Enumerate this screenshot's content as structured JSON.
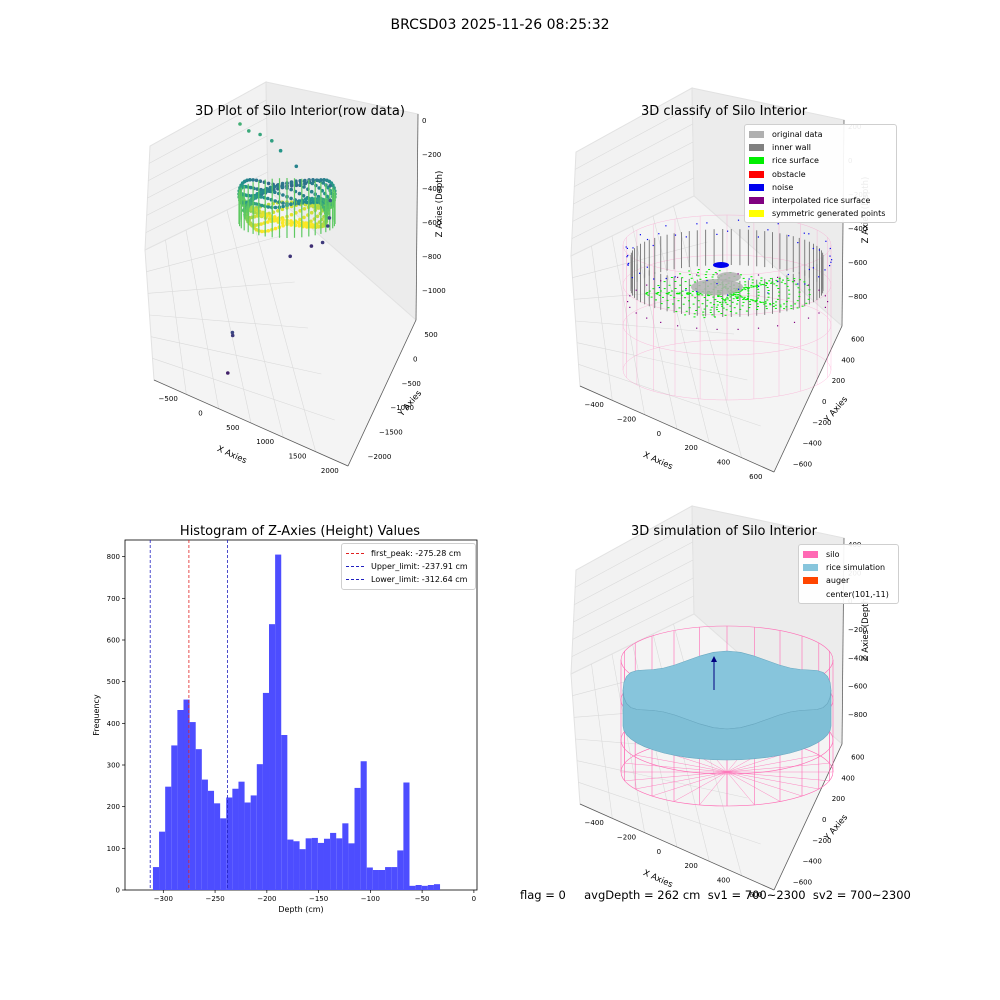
{
  "figure_title": "BRCSD03 2025-11-26 08:25:32",
  "status_line": "flag = 0     avgDepth = 262 cm  sv1 = 700~2300  sv2 = 700~2300",
  "colors": {
    "histogram_fill": "#4d4dff",
    "first_peak_line": "#e02020",
    "limit_lines": "#2020c0",
    "original_data": "#b0b0b0",
    "inner_wall": "#808080",
    "rice_surface": "#00ee00",
    "obstacle": "#ff0000",
    "noise": "#0000ee",
    "interpolated_rice_surface": "#800080",
    "symmetric_generated_points": "#ffff00",
    "silo": "#ff69b4",
    "rice_simulation": "#87c5dc",
    "auger": "#ff4500"
  },
  "chart_data": [
    {
      "type": "scatter",
      "projection": "3d",
      "title": "3D Plot of Silo Interior(row data)",
      "xlabel": "X Axies",
      "ylabel": "Y Axies",
      "zlabel": "Z Axies (Depth)",
      "x_ticks": [
        "−500",
        "0",
        "500",
        "1000",
        "1500",
        "2000"
      ],
      "y_ticks": [
        "500",
        "0",
        "−500",
        "−1000",
        "−1500",
        "−2000"
      ],
      "z_ticks": [
        "0",
        "−200",
        "−400",
        "−600",
        "−800",
        "−1000"
      ],
      "colormap": "viridis",
      "outlier_points": [
        {
          "x": -480,
          "y": -2050,
          "z": -950
        },
        {
          "x": -310,
          "y": -1700,
          "z": -820
        },
        {
          "x": -290,
          "y": -1650,
          "z": -860
        },
        {
          "x": 880,
          "y": -280,
          "z": -880
        },
        {
          "x": 1220,
          "y": -60,
          "z": -900
        },
        {
          "x": 1350,
          "y": -100,
          "z": -860
        },
        {
          "x": 1480,
          "y": 100,
          "z": -830
        },
        {
          "x": 1520,
          "y": 160,
          "z": -800
        },
        {
          "x": 1560,
          "y": 250,
          "z": -720
        },
        {
          "x": 1580,
          "y": 320,
          "z": -650
        },
        {
          "x": 1260,
          "y": 330,
          "z": -640
        },
        {
          "x": 1180,
          "y": 420,
          "z": -560
        },
        {
          "x": 1000,
          "y": 480,
          "z": -480
        },
        {
          "x": 900,
          "y": 520,
          "z": -430
        },
        {
          "x": 760,
          "y": 550,
          "z": -400
        },
        {
          "x": 620,
          "y": 560,
          "z": -380
        },
        {
          "x": 520,
          "y": 600,
          "z": -350
        }
      ]
    },
    {
      "type": "scatter",
      "projection": "3d",
      "title": "3D classify of Silo Interior",
      "xlabel": "X Axies",
      "ylabel": "Y Axies",
      "zlabel": "Z Axies (Depth)",
      "x_ticks": [
        "−400",
        "−200",
        "0",
        "200",
        "400",
        "600"
      ],
      "y_ticks": [
        "600",
        "400",
        "200",
        "0",
        "−200",
        "−400",
        "−600"
      ],
      "z_ticks": [
        "200",
        "0",
        "−200",
        "−400",
        "−600",
        "−800"
      ],
      "legend": [
        "original data",
        "inner wall",
        "rice surface",
        "obstacle",
        "noise",
        "interpolated rice surface",
        "symmetric generated points"
      ],
      "legend_position": "top-right"
    },
    {
      "type": "bar",
      "title": "Histogram of Z-Axies (Height) Values",
      "xlabel": "Depth (cm)",
      "ylabel": "Frequency",
      "xlim": [
        -337,
        3
      ],
      "ylim": [
        0,
        840
      ],
      "x_ticks": [
        -300,
        -250,
        -200,
        -150,
        -100,
        -50,
        0
      ],
      "y_ticks": [
        0,
        100,
        200,
        300,
        400,
        500,
        600,
        700,
        800
      ],
      "bin_start": -310,
      "bin_width": 5.9,
      "values": [
        55,
        140,
        248,
        347,
        432,
        457,
        403,
        338,
        265,
        238,
        208,
        172,
        222,
        243,
        260,
        210,
        227,
        302,
        473,
        638,
        805,
        372,
        121,
        117,
        98,
        124,
        125,
        113,
        123,
        137,
        124,
        160,
        112,
        245,
        309,
        54,
        48,
        48,
        55,
        55,
        95,
        258,
        10,
        12,
        10,
        12,
        14
      ],
      "vlines": [
        {
          "label": "first_peak: -275.28 cm",
          "x": -275.28,
          "color": "#e02020"
        },
        {
          "label": "Upper_limit: -237.91 cm",
          "x": -237.91,
          "color": "#2020c0"
        },
        {
          "label": "Lower_limit: -312.64 cm",
          "x": -312.64,
          "color": "#2020c0"
        }
      ],
      "legend_position": "top-right",
      "grid": false
    },
    {
      "type": "area",
      "projection": "3d",
      "title": "3D simulation of Silo Interior",
      "xlabel": "X Axies",
      "ylabel": "Y Axies",
      "zlabel": "Z Axies (Depth)",
      "x_ticks": [
        "−400",
        "−200",
        "0",
        "200",
        "400",
        "600"
      ],
      "y_ticks": [
        "600",
        "400",
        "200",
        "0",
        "−200",
        "−400",
        "−600"
      ],
      "z_ticks": [
        "400",
        "200",
        "0",
        "−200",
        "−400",
        "−600",
        "−800"
      ],
      "legend": [
        "silo",
        "rice simulation",
        "auger",
        "center(101,-11)"
      ],
      "legend_position": "top-right"
    }
  ]
}
